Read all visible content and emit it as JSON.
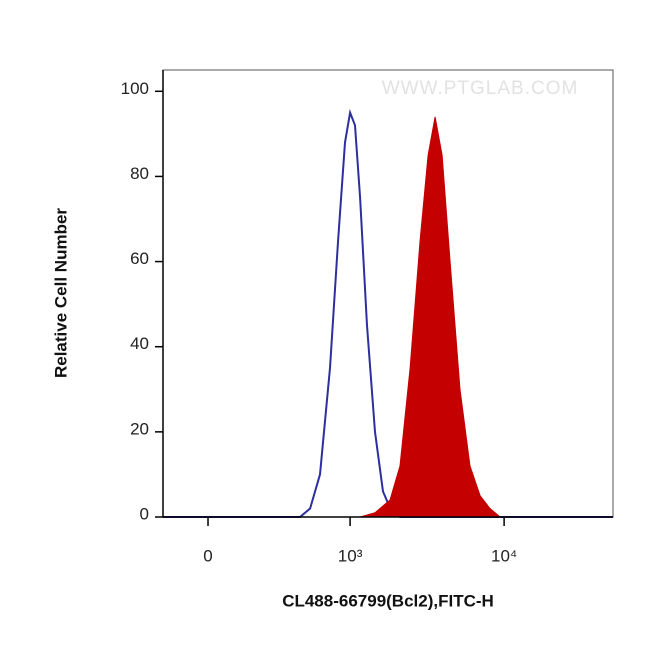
{
  "chart_data": {
    "type": "histogram-overlay",
    "watermark": "WWW.PTGLAB.COM",
    "x_label": "CL488-66799(Bcl2),FITC-H",
    "y_label": "Relative Cell Number",
    "xscale": "biexponential",
    "xlim": [
      -177,
      50400
    ],
    "xticks": [
      0,
      {
        "value": 1000,
        "label": "10³"
      },
      {
        "value": 10000,
        "label": "10⁴"
      }
    ],
    "ylim": [
      0,
      105
    ],
    "yticks": [
      0,
      20,
      40,
      60,
      80,
      100
    ],
    "series": [
      {
        "color": "#2e2e9e",
        "fill": false,
        "x": [
          -177,
          451,
          533,
          626,
          733,
          831,
          925,
          1000,
          1078,
          1164,
          1293,
          1460,
          1646,
          1885,
          2124,
          50400
        ],
        "values": [
          0,
          0,
          2,
          10,
          35,
          65,
          88,
          95,
          92,
          75,
          45,
          20,
          6,
          1,
          0,
          0
        ]
      },
      {
        "color": "#c40000",
        "fill": true,
        "x": [
          -177,
          1164,
          1460,
          1829,
          2124,
          2467,
          2864,
          3228,
          3582,
          3975,
          4477,
          5193,
          6027,
          6994,
          8113,
          9414,
          50400
        ],
        "values": [
          0,
          0,
          1,
          4,
          12,
          35,
          65,
          85,
          94,
          85,
          60,
          30,
          12,
          5,
          2,
          0,
          0
        ]
      }
    ]
  }
}
